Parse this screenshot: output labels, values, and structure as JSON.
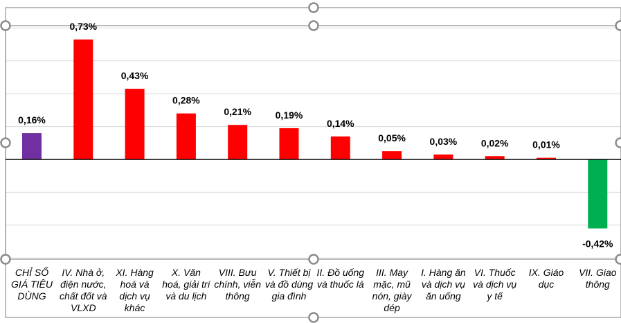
{
  "chart_data": {
    "type": "bar",
    "title": "",
    "xlabel": "",
    "ylabel": "",
    "ylim": [
      -0.6,
      0.8
    ],
    "grid": true,
    "legend": "none",
    "categories": [
      "CHỈ SỐ GIÁ TIÊU DÙNG",
      "IV. Nhà ở, điện nước, chất đốt và VLXD",
      "XI. Hàng hoá và dịch vụ khác",
      "X. Văn hoá, giải trí và du lịch",
      "VIII. Bưu chính, viễn thông",
      "V. Thiết bị và đồ dùng gia đình",
      "II. Đồ uống và thuốc lá",
      "III. May mặc, mũ nón, giày dép",
      "I. Hàng ăn và dịch vụ ăn uống",
      "VI. Thuốc và dịch vụ y tế",
      "IX. Giáo dục",
      "VII. Giao thông"
    ],
    "category_lines": [
      [
        "CHỈ SỐ",
        "GIÁ TIÊU",
        "DÙNG"
      ],
      [
        "IV. Nhà ở,",
        "điện nước,",
        "chất đốt và",
        "VLXD"
      ],
      [
        "XI. Hàng",
        "hoá và",
        "dịch vụ",
        "khác"
      ],
      [
        "X. Văn",
        "hoá, giải trí",
        "và du lịch"
      ],
      [
        "VIII. Bưu",
        "chính, viễn",
        "thông"
      ],
      [
        "V. Thiết bị",
        "và đồ dùng",
        "gia đình"
      ],
      [
        "II. Đồ uống",
        "và thuốc lá"
      ],
      [
        "III. May",
        "mặc, mũ",
        "nón, giày",
        "dép"
      ],
      [
        "I. Hàng ăn",
        "và dịch vụ",
        "ăn uống"
      ],
      [
        "VI. Thuốc",
        "và dịch vụ",
        "y tế"
      ],
      [
        "IX. Giáo",
        "dục"
      ],
      [
        "VII. Giao",
        "thông"
      ]
    ],
    "values": [
      0.16,
      0.73,
      0.43,
      0.28,
      0.21,
      0.19,
      0.14,
      0.05,
      0.03,
      0.02,
      0.01,
      -0.42
    ],
    "value_labels": [
      "0,16%",
      "0,73%",
      "0,43%",
      "0,28%",
      "0,21%",
      "0,19%",
      "0,14%",
      "0,05%",
      "0,03%",
      "0,02%",
      "0,01%",
      "-0,42%"
    ],
    "colors": {
      "total": "#7030a0",
      "positive": "#ff0000",
      "negative": "#00b050",
      "grid": "#d9d9d9",
      "zero_line": "#000000",
      "frame": "#a6a6a6"
    }
  }
}
